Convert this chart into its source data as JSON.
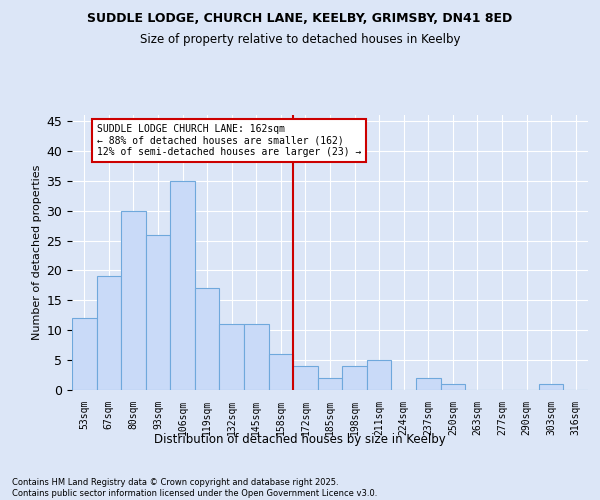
{
  "title1": "SUDDLE LODGE, CHURCH LANE, KEELBY, GRIMSBY, DN41 8ED",
  "title2": "Size of property relative to detached houses in Keelby",
  "xlabel": "Distribution of detached houses by size in Keelby",
  "ylabel": "Number of detached properties",
  "categories": [
    "53sqm",
    "67sqm",
    "80sqm",
    "93sqm",
    "106sqm",
    "119sqm",
    "132sqm",
    "145sqm",
    "158sqm",
    "172sqm",
    "185sqm",
    "198sqm",
    "211sqm",
    "224sqm",
    "237sqm",
    "250sqm",
    "263sqm",
    "277sqm",
    "290sqm",
    "303sqm",
    "316sqm"
  ],
  "values": [
    12,
    19,
    30,
    26,
    35,
    17,
    11,
    11,
    6,
    4,
    2,
    4,
    5,
    0,
    2,
    1,
    0,
    0,
    0,
    1,
    0
  ],
  "bar_color": "#c9daf8",
  "bar_edge_color": "#6fa8dc",
  "vline_x": 8.5,
  "vline_color": "#cc0000",
  "annotation_text": "SUDDLE LODGE CHURCH LANE: 162sqm\n← 88% of detached houses are smaller (162)\n12% of semi-detached houses are larger (23) →",
  "annotation_box_color": "#ffffff",
  "annotation_box_edge": "#cc0000",
  "ylim": [
    0,
    46
  ],
  "yticks": [
    0,
    5,
    10,
    15,
    20,
    25,
    30,
    35,
    40,
    45
  ],
  "footer": "Contains HM Land Registry data © Crown copyright and database right 2025.\nContains public sector information licensed under the Open Government Licence v3.0.",
  "bg_color": "#dce6f7",
  "plot_bg_color": "#dce6f7"
}
